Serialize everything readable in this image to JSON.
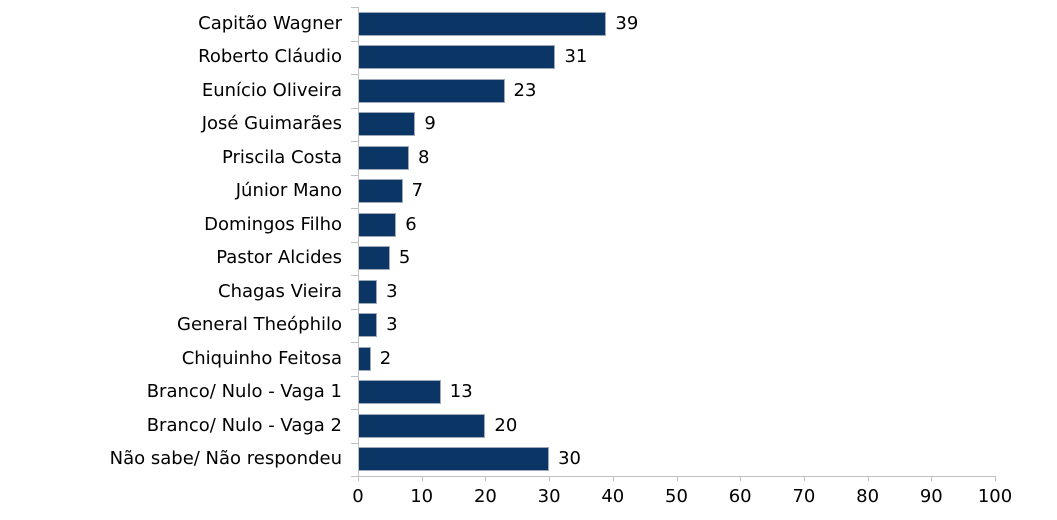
{
  "chart_data": {
    "type": "bar",
    "orientation": "horizontal",
    "title": "",
    "xlabel": "",
    "ylabel": "",
    "xlim": [
      0,
      100
    ],
    "x_ticks": [
      "0",
      "10",
      "20",
      "30",
      "40",
      "50",
      "60",
      "70",
      "80",
      "90",
      "100"
    ],
    "grid": false,
    "legend": "none",
    "categories": [
      "Capitão Wagner",
      "Roberto Cláudio",
      "Eunício Oliveira",
      "José Guimarães",
      "Priscila Costa",
      "Júnior Mano",
      "Domingos Filho",
      "Pastor Alcides",
      "Chagas Vieira",
      "General Theóphilo",
      "Chiquinho Feitosa",
      "Branco/ Nulo - Vaga 1",
      "Branco/ Nulo - Vaga 2",
      "Não sabe/ Não respondeu"
    ],
    "values": [
      39,
      31,
      23,
      9,
      8,
      7,
      6,
      5,
      3,
      3,
      2,
      13,
      20,
      30
    ],
    "data_labels": [
      "39",
      "31",
      "23",
      "9",
      "8",
      "7",
      "6",
      "5",
      "3",
      "3",
      "2",
      "13",
      "20",
      "30"
    ],
    "colors": {
      "bar_fill": "#0a3565",
      "bar_border": "#9fa9b8",
      "axis_line": "#c0c0c0",
      "text": "#000000",
      "background": "#ffffff"
    }
  }
}
